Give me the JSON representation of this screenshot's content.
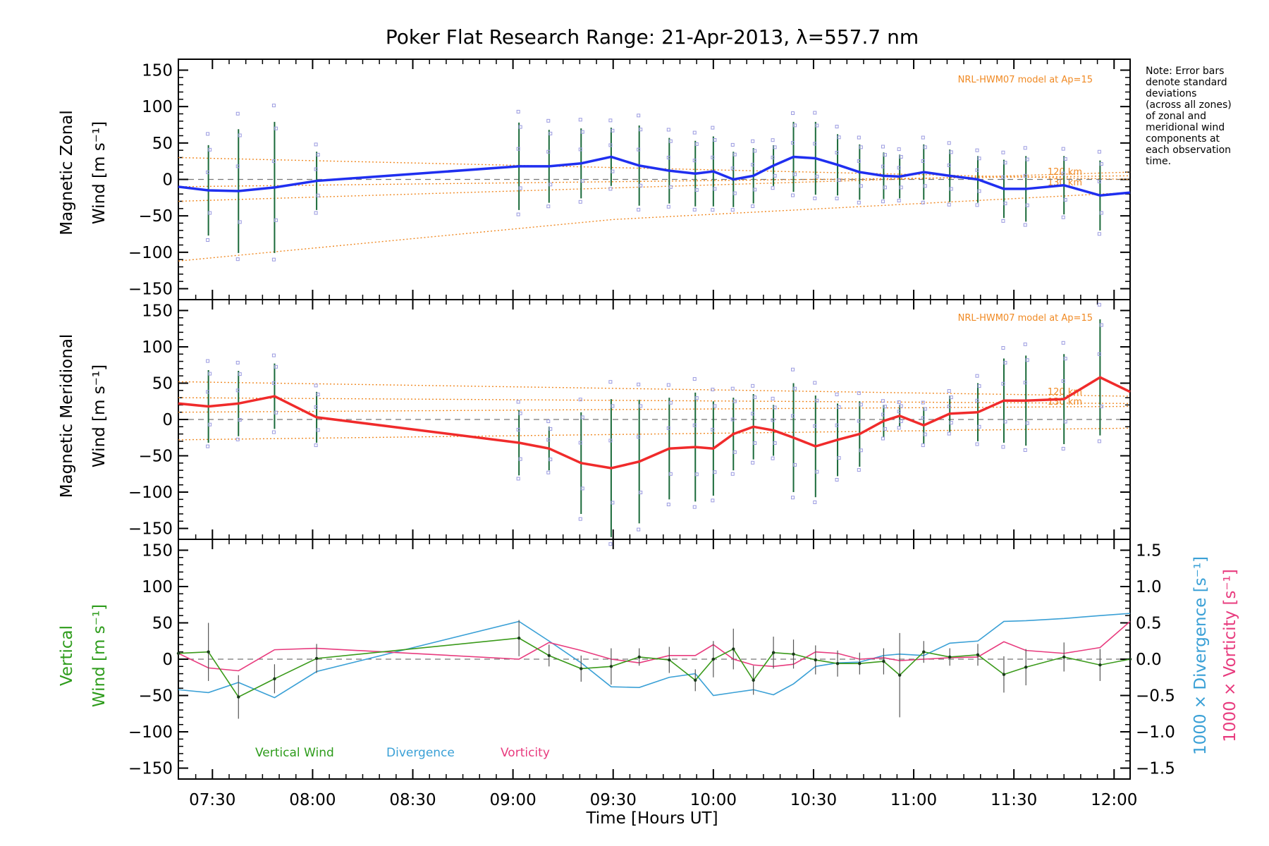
{
  "chart_data": {
    "type": "line",
    "title": "Poker Flat Research Range: 21-Apr-2013, λ=557.7 nm",
    "xlabel": "Time [Hours UT]",
    "x_range_hours": [
      7.33,
      12.08
    ],
    "x_ticks": [
      {
        "h": 7.5,
        "label": "07:30"
      },
      {
        "h": 8.0,
        "label": "08:00"
      },
      {
        "h": 8.5,
        "label": "08:30"
      },
      {
        "h": 9.0,
        "label": "09:00"
      },
      {
        "h": 9.5,
        "label": "09:30"
      },
      {
        "h": 10.0,
        "label": "10:00"
      },
      {
        "h": 10.5,
        "label": "10:30"
      },
      {
        "h": 11.0,
        "label": "11:00"
      },
      {
        "h": 11.5,
        "label": "11:30"
      },
      {
        "h": 12.0,
        "label": "12:00"
      }
    ],
    "y_ticks": [
      "150",
      "100",
      "50",
      "0",
      "−50",
      "−100",
      "−150"
    ],
    "y_tick_values": [
      150,
      100,
      50,
      0,
      -50,
      -100,
      -150
    ],
    "right_ticks": [
      "1.5",
      "1.0",
      "0.5",
      "0.0",
      "−0.5",
      "−1.0",
      "−1.5"
    ],
    "right_tick_values": [
      1.5,
      1.0,
      0.5,
      0.0,
      -0.5,
      -1.0,
      -1.5
    ],
    "note": [
      "Note: Error bars",
      "denote standard",
      "deviations",
      "(across all zones)",
      "of zonal and",
      "meridional wind",
      "components at",
      "each observation",
      "time."
    ],
    "legend": [
      "Vertical Wind",
      "Divergence",
      "Vorticity"
    ],
    "colors": {
      "zonal": "#1f2ff0",
      "meridional": "#f02b2b",
      "vertical": "#3a9a1a",
      "divergence": "#3aa0d6",
      "vorticity": "#e83b7e",
      "model": "#f08a24",
      "errorbar": "#1a6a3a",
      "scatter": "#9a9ae0"
    },
    "panels": [
      {
        "name": "zonal",
        "ylabel_line1": "Magnetic Zonal",
        "ylabel_word": "Wind",
        "ylabel_unit": "[m s⁻¹]",
        "ylim": [
          -165,
          165
        ],
        "model_label": "NRL-HWM07 model at Ap=15",
        "altitude_labels": [
          "120 km",
          "130 km"
        ],
        "series": {
          "name": "Zonal wind",
          "x": [
            7.33,
            7.48,
            7.63,
            7.81,
            8.02,
            9.03,
            9.18,
            9.34,
            9.49,
            9.63,
            9.78,
            9.91,
            10.0,
            10.1,
            10.2,
            10.3,
            10.4,
            10.51,
            10.62,
            10.73,
            10.85,
            10.93,
            11.05,
            11.18,
            11.32,
            11.45,
            11.56,
            11.75,
            11.93,
            12.08
          ],
          "y": [
            -10,
            -15,
            -16,
            -11,
            -2,
            18,
            18,
            22,
            31,
            19,
            12,
            8,
            11,
            0,
            5,
            19,
            31,
            29,
            20,
            10,
            5,
            4,
            10,
            5,
            0,
            -13,
            -13,
            -8,
            -22,
            -18
          ],
          "err": [
            0,
            62,
            85,
            90,
            40,
            60,
            50,
            48,
            40,
            55,
            45,
            45,
            48,
            38,
            38,
            28,
            48,
            50,
            42,
            38,
            32,
            30,
            38,
            36,
            32,
            40,
            45,
            40,
            48,
            0
          ]
        },
        "model": [
          {
            "x": [
              7.33,
              12.08
            ],
            "y": [
              30,
              0
            ]
          },
          {
            "x": [
              7.33,
              12.08
            ],
            "y": [
              -30,
              10
            ]
          },
          {
            "x": [
              7.33,
              9.5,
              12.08
            ],
            "y": [
              -112,
              -55,
              -18
            ]
          },
          {
            "x": [
              7.33,
              12.08
            ],
            "y": [
              -10,
              5
            ]
          }
        ]
      },
      {
        "name": "meridional",
        "ylabel_line1": "Magnetic Meridional",
        "ylabel_word": "Wind",
        "ylabel_unit": "[m s⁻¹]",
        "ylim": [
          -165,
          165
        ],
        "model_label": "NRL-HWM07 model at Ap=15",
        "altitude_labels": [
          "120 km",
          "130 km"
        ],
        "series": {
          "name": "Meridional wind",
          "x": [
            7.33,
            7.48,
            7.63,
            7.81,
            8.02,
            9.03,
            9.18,
            9.34,
            9.49,
            9.63,
            9.78,
            9.91,
            10.0,
            10.1,
            10.2,
            10.3,
            10.4,
            10.51,
            10.62,
            10.73,
            10.85,
            10.93,
            11.05,
            11.18,
            11.32,
            11.45,
            11.56,
            11.75,
            11.93,
            12.08
          ],
          "y": [
            22,
            18,
            22,
            32,
            3,
            -32,
            -40,
            -60,
            -67,
            -58,
            -40,
            -38,
            -40,
            -20,
            -10,
            -15,
            -25,
            -37,
            -28,
            -20,
            -2,
            5,
            -8,
            8,
            10,
            26,
            26,
            28,
            58,
            38
          ],
          "err": [
            0,
            50,
            45,
            45,
            35,
            45,
            30,
            70,
            95,
            85,
            70,
            75,
            65,
            50,
            45,
            35,
            75,
            70,
            50,
            45,
            22,
            15,
            25,
            25,
            40,
            58,
            62,
            62,
            80,
            0
          ]
        },
        "model": [
          {
            "x": [
              7.33,
              12.08
            ],
            "y": [
              52,
              32
            ]
          },
          {
            "x": [
              7.33,
              12.08
            ],
            "y": [
              30,
              22
            ]
          },
          {
            "x": [
              7.33,
              12.08
            ],
            "y": [
              10,
              18
            ]
          },
          {
            "x": [
              7.33,
              12.08
            ],
            "y": [
              -28,
              -12
            ]
          }
        ]
      },
      {
        "name": "vertical",
        "ylabel_line1": "Vertical",
        "ylabel_word": "Wind",
        "ylabel_unit": "[m s⁻¹]",
        "right_label_div": "1000 × Divergence [s⁻¹]",
        "right_label_vor": "1000 × Vorticity [s⁻¹]",
        "ylim": [
          -165,
          165
        ],
        "right_ylim": [
          -1.65,
          1.65
        ],
        "vertical_wind": {
          "x": [
            7.33,
            7.48,
            7.63,
            7.81,
            8.02,
            9.03,
            9.18,
            9.34,
            9.49,
            9.63,
            9.78,
            9.91,
            10.0,
            10.1,
            10.2,
            10.3,
            10.4,
            10.51,
            10.62,
            10.73,
            10.85,
            10.93,
            11.05,
            11.18,
            11.32,
            11.45,
            11.56,
            11.75,
            11.93,
            12.08
          ],
          "y": [
            8,
            10,
            -52,
            -27,
            1,
            29,
            5,
            -13,
            -10,
            3,
            -1,
            -29,
            0,
            14,
            -29,
            9,
            7,
            -1,
            -6,
            -6,
            -3,
            -22,
            10,
            3,
            6,
            -21,
            -11,
            3,
            -8,
            0
          ],
          "err": [
            0,
            40,
            30,
            20,
            20,
            25,
            15,
            18,
            25,
            12,
            18,
            15,
            25,
            28,
            20,
            22,
            20,
            20,
            18,
            15,
            18,
            58,
            15,
            12,
            15,
            25,
            25,
            20,
            22,
            0
          ]
        },
        "divergence": {
          "x": [
            7.33,
            7.48,
            7.63,
            7.81,
            8.02,
            9.03,
            9.18,
            9.34,
            9.49,
            9.63,
            9.78,
            9.91,
            10.0,
            10.1,
            10.2,
            10.3,
            10.4,
            10.51,
            10.62,
            10.73,
            10.85,
            10.93,
            11.05,
            11.18,
            11.32,
            11.45,
            11.56,
            11.75,
            11.93,
            12.08
          ],
          "y": [
            -0.42,
            -0.46,
            -0.32,
            -0.53,
            -0.17,
            0.52,
            0.25,
            -0.05,
            -0.38,
            -0.39,
            -0.25,
            -0.2,
            -0.5,
            -0.46,
            -0.42,
            -0.49,
            -0.34,
            -0.1,
            -0.05,
            -0.04,
            0.05,
            0.07,
            0.05,
            0.22,
            0.25,
            0.52,
            0.53,
            0.56,
            0.6,
            0.63
          ]
        },
        "vorticity": {
          "x": [
            7.33,
            7.48,
            7.63,
            7.81,
            8.02,
            9.03,
            9.18,
            9.34,
            9.49,
            9.63,
            9.78,
            9.91,
            10.0,
            10.1,
            10.2,
            10.3,
            10.4,
            10.51,
            10.62,
            10.73,
            10.85,
            10.93,
            11.05,
            11.18,
            11.32,
            11.45,
            11.56,
            11.75,
            11.93,
            12.08
          ],
          "y": [
            0.08,
            -0.12,
            -0.16,
            0.13,
            0.15,
            0.0,
            0.23,
            0.12,
            0.0,
            -0.05,
            0.05,
            0.05,
            0.2,
            0.0,
            -0.08,
            -0.1,
            -0.07,
            0.1,
            0.08,
            0.0,
            0.02,
            -0.02,
            0.0,
            0.02,
            0.03,
            0.24,
            0.12,
            0.08,
            0.16,
            0.52
          ]
        }
      }
    ]
  }
}
